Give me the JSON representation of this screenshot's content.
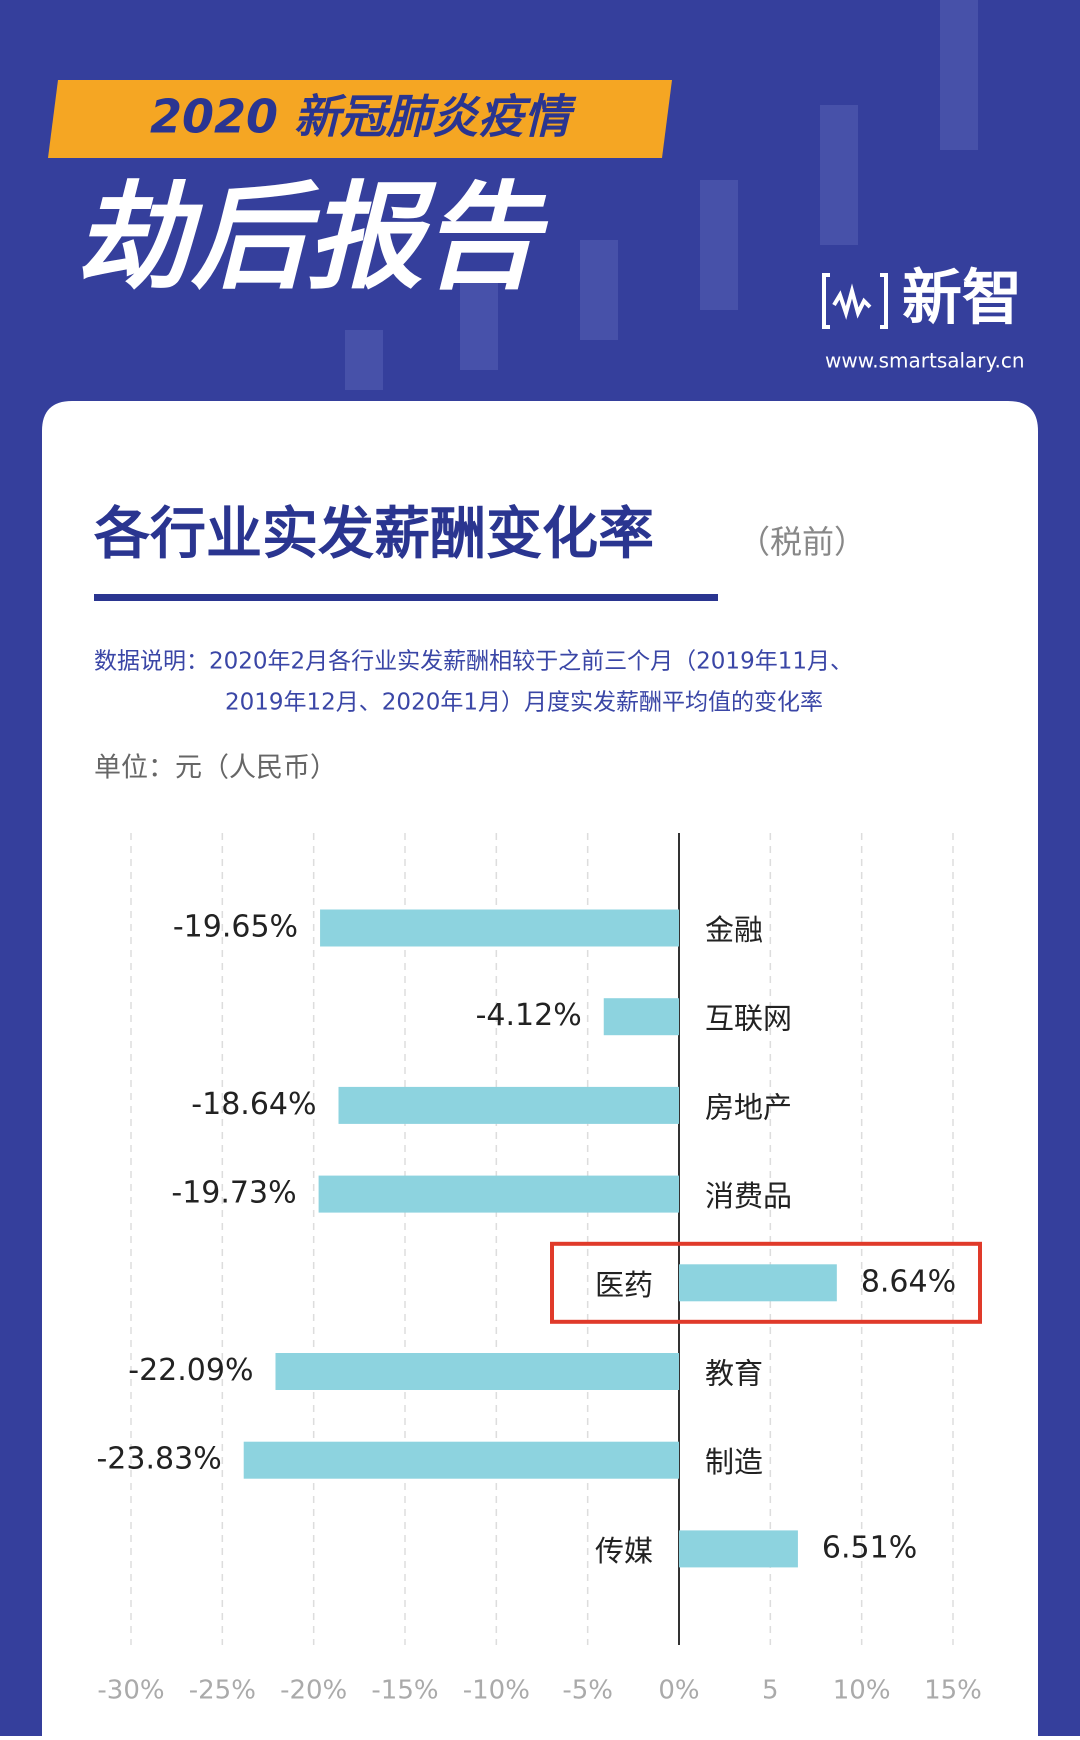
{
  "header": {
    "banner": "2020 新冠肺炎疫情",
    "title": "劫后报告",
    "logo": "新智",
    "url": "www.smartsalary.cn"
  },
  "chart_data": {
    "type": "barh",
    "title": "各行业实发薪酬变化率",
    "subtitle": "（税前）",
    "note": [
      "数据说明：2020年2月各行业实发薪酬相较于之前三个月（2019年11月、",
      "2019年12月、2020年1月）月度实发薪酬平均值的变化率"
    ],
    "unit": "单位：元（人民币）",
    "categories": [
      "金融",
      "互联网",
      "房地产",
      "消费品",
      "医药",
      "教育",
      "制造",
      "传媒"
    ],
    "values": [
      -19.65,
      -4.12,
      -18.64,
      -19.73,
      8.64,
      -22.09,
      -23.83,
      6.51
    ],
    "value_labels": [
      "-19.65%",
      "-4.12%",
      "-18.64%",
      "-19.73%",
      "8.64%",
      "-22.09%",
      "-23.83%",
      "6.51%"
    ],
    "color": "#8dd3df",
    "highlight": 4,
    "grid": true,
    "xlim": [
      -30,
      15
    ],
    "xticks": [
      {
        "value": -30,
        "label": "-30%"
      },
      {
        "value": -25,
        "label": "-25%"
      },
      {
        "value": -20,
        "label": "-20%"
      },
      {
        "value": -15,
        "label": "-15%"
      },
      {
        "value": -10,
        "label": "-10%"
      },
      {
        "value": -5,
        "label": "-5%"
      },
      {
        "value": 0,
        "label": "0%"
      },
      5,
      {
        "value": 10,
        "label": "10%"
      },
      {
        "value": 15,
        "label": "15%"
      }
    ]
  }
}
